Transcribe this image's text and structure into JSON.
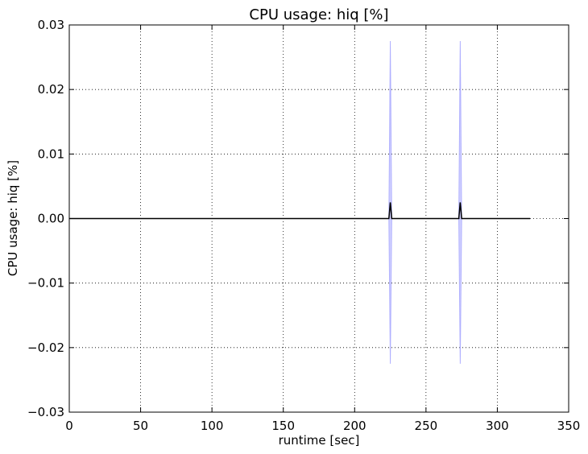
{
  "chart_data": {
    "type": "line",
    "title": "CPU usage: hiq [%]",
    "xlabel": "runtime [sec]",
    "ylabel": "CPU usage: hiq [%]",
    "xlim": [
      0,
      350
    ],
    "ylim": [
      -0.03,
      0.03
    ],
    "xticks": [
      0,
      50,
      100,
      150,
      200,
      250,
      300,
      350
    ],
    "xtick_labels": [
      "0",
      "50",
      "100",
      "150",
      "200",
      "250",
      "300",
      "350"
    ],
    "yticks": [
      -0.03,
      -0.02,
      -0.01,
      0.0,
      0.01,
      0.02,
      0.03
    ],
    "ytick_labels": [
      "−0.03",
      "−0.02",
      "−0.01",
      "0.00",
      "0.01",
      "0.02",
      "0.03"
    ],
    "grid": true,
    "series": [
      {
        "color": "#000000",
        "x": [
          0,
          223,
          224,
          225,
          226,
          227,
          272,
          273,
          274,
          275,
          276,
          323
        ],
        "y": [
          0,
          0,
          0,
          0.0025,
          0,
          0,
          0,
          0,
          0.0025,
          0,
          0,
          0
        ],
        "band_color": "#b0b0ff",
        "band_upper": [
          0,
          0,
          0,
          0.0275,
          0,
          0,
          0,
          0,
          0.0275,
          0,
          0,
          0
        ],
        "band_lower": [
          0,
          0,
          0,
          -0.0225,
          0,
          0,
          0,
          0,
          -0.0225,
          0,
          0,
          0
        ]
      }
    ]
  }
}
